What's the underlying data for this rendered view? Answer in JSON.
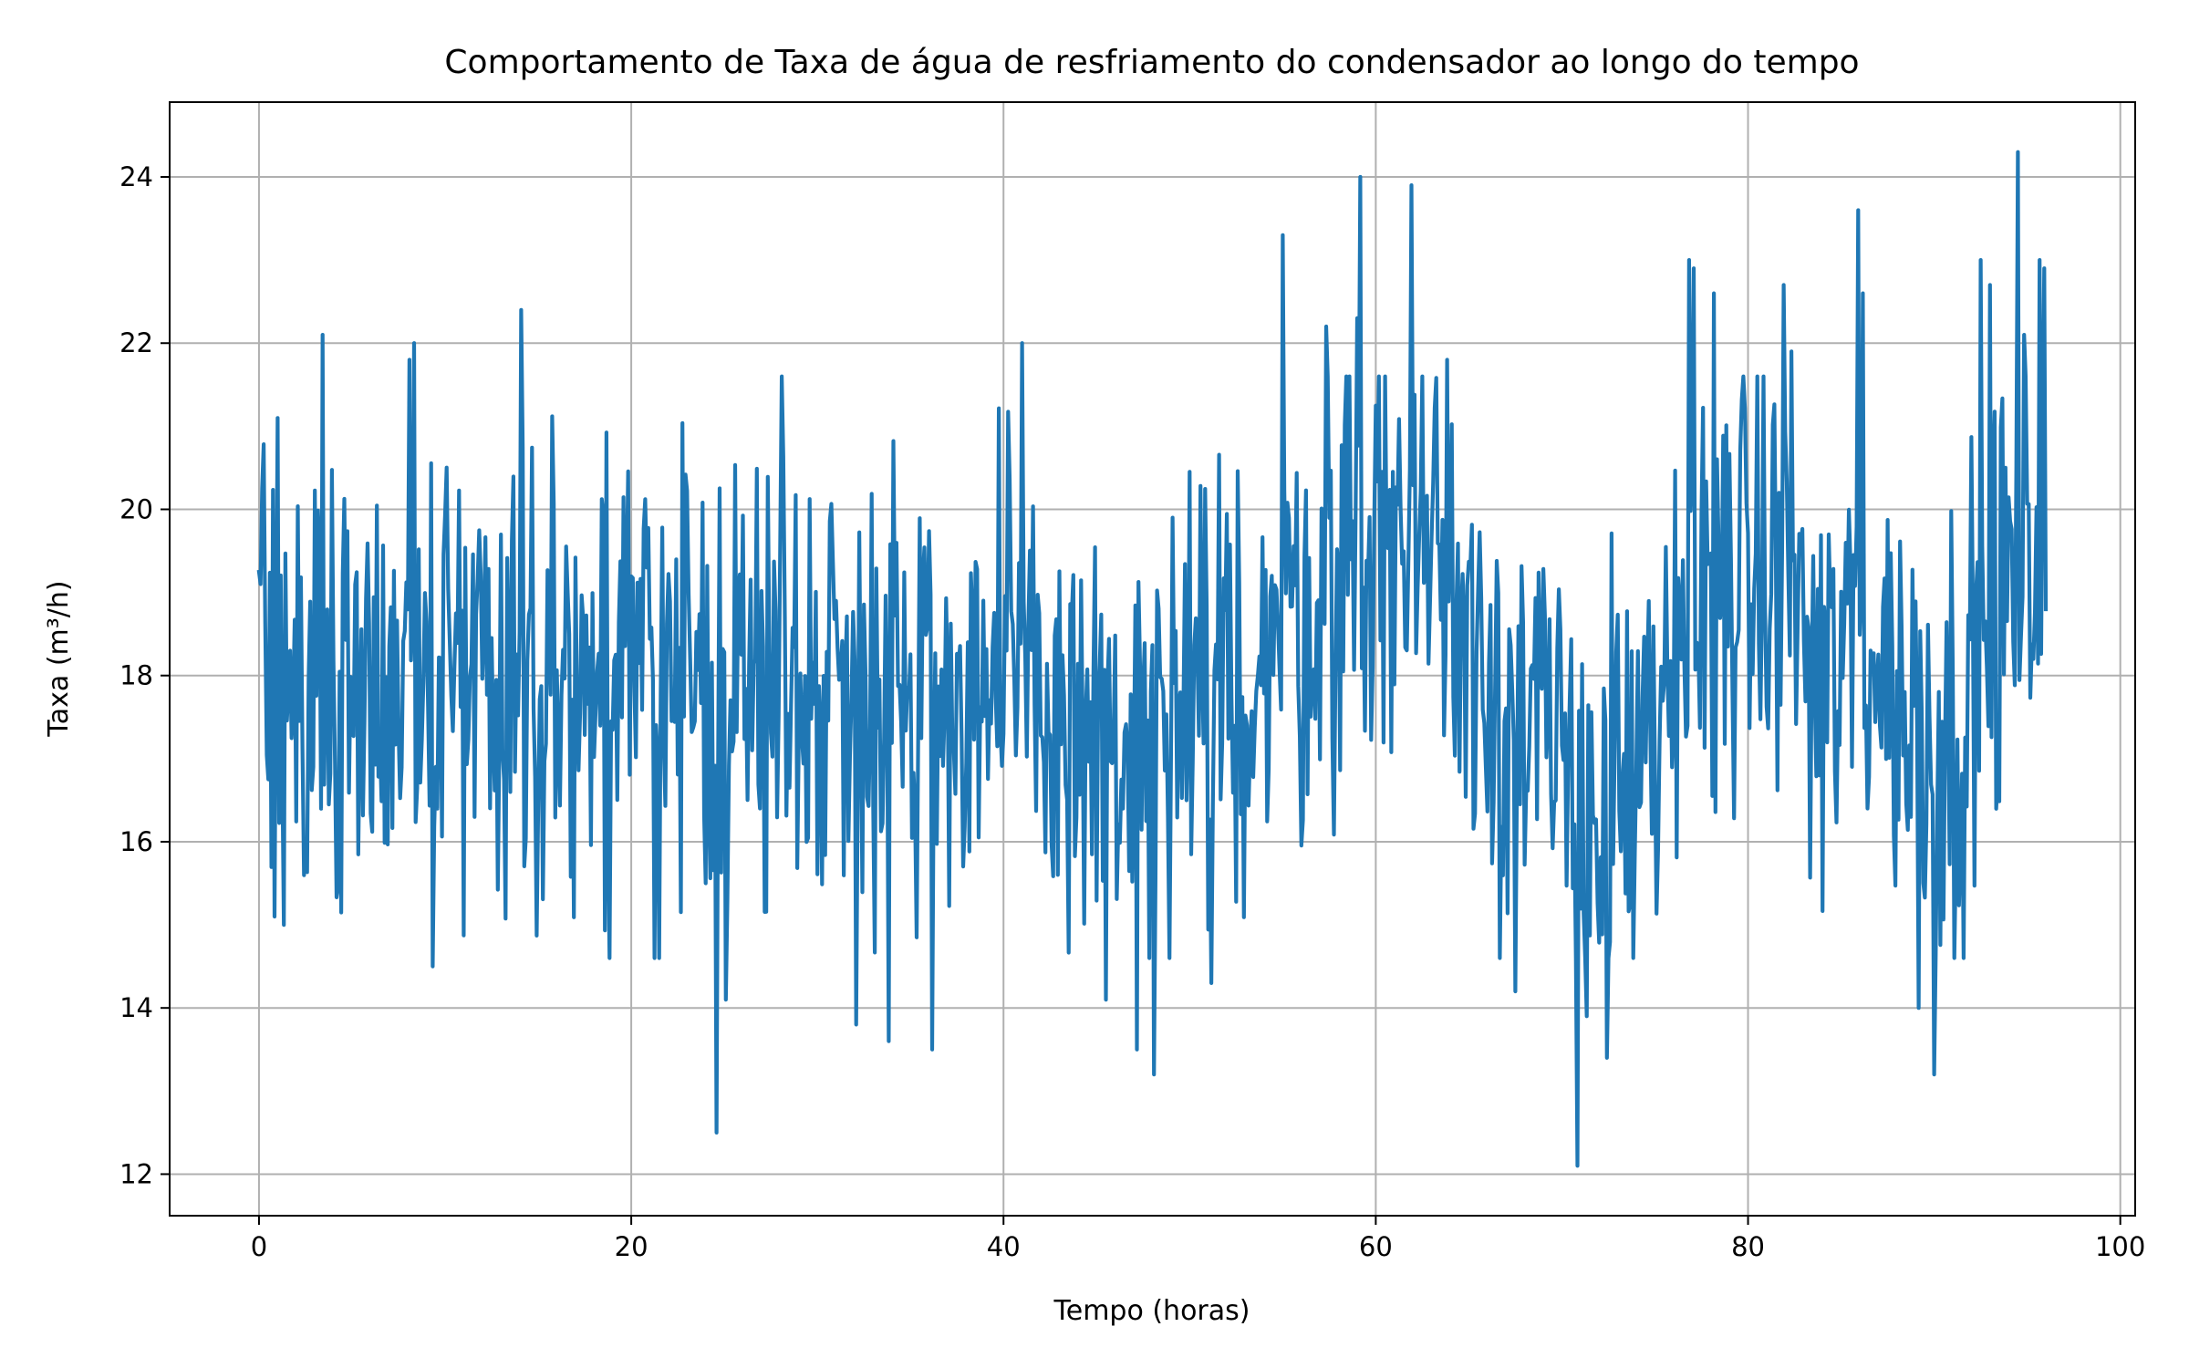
{
  "chart_data": {
    "type": "line",
    "title": "Comportamento de Taxa de água de resfriamento do condensador ao longo do tempo",
    "xlabel": "Tempo (horas)",
    "ylabel": "Taxa (m³/h)",
    "xlim": [
      -4.8,
      100.8
    ],
    "ylim": [
      11.5,
      24.9
    ],
    "grid": true,
    "legend": "none",
    "series_color": "#1f77b4",
    "x_ticks": [
      {
        "value": 0,
        "label": "0"
      },
      {
        "value": 20,
        "label": "20"
      },
      {
        "value": 40,
        "label": "40"
      },
      {
        "value": 60,
        "label": "60"
      },
      {
        "value": 80,
        "label": "80"
      },
      {
        "value": 100,
        "label": "100"
      }
    ],
    "y_ticks": [
      {
        "value": 12,
        "label": "12"
      },
      {
        "value": 14,
        "label": "14"
      },
      {
        "value": 16,
        "label": "16"
      },
      {
        "value": 18,
        "label": "18"
      },
      {
        "value": 20,
        "label": "20"
      },
      {
        "value": 22,
        "label": "22"
      },
      {
        "value": 24,
        "label": "24"
      }
    ],
    "sampling": {
      "x_start": 0,
      "x_end": 96,
      "points": 1153
    },
    "trend_knots": [
      [
        0,
        18.0
      ],
      [
        6,
        18.0
      ],
      [
        12,
        18.2
      ],
      [
        18,
        18.0
      ],
      [
        24,
        17.8
      ],
      [
        30,
        18.0
      ],
      [
        35,
        18.0
      ],
      [
        40,
        17.8
      ],
      [
        44,
        17.4
      ],
      [
        47,
        16.8
      ],
      [
        50,
        17.3
      ],
      [
        53,
        18.0
      ],
      [
        56,
        18.8
      ],
      [
        59,
        19.6
      ],
      [
        62,
        19.8
      ],
      [
        64,
        19.2
      ],
      [
        66,
        18.2
      ],
      [
        69,
        17.0
      ],
      [
        72,
        16.4
      ],
      [
        75,
        16.6
      ],
      [
        77,
        19.0
      ],
      [
        80,
        19.3
      ],
      [
        82,
        19.0
      ],
      [
        84,
        17.6
      ],
      [
        86,
        18.5
      ],
      [
        88,
        17.8
      ],
      [
        90,
        17.0
      ],
      [
        92,
        17.6
      ],
      [
        94,
        19.2
      ],
      [
        96,
        19.6
      ]
    ],
    "noise_amplitude": 1.35,
    "extremes": [
      [
        0.1,
        19.1
      ],
      [
        0.8,
        15.1
      ],
      [
        1.0,
        21.1
      ],
      [
        1.3,
        15.0
      ],
      [
        3.4,
        22.1
      ],
      [
        8.1,
        21.8
      ],
      [
        8.3,
        22.0
      ],
      [
        9.3,
        14.5
      ],
      [
        14.1,
        22.4
      ],
      [
        18.8,
        14.6
      ],
      [
        24.6,
        12.5
      ],
      [
        25.1,
        14.1
      ],
      [
        28.1,
        21.6
      ],
      [
        32.1,
        13.8
      ],
      [
        33.8,
        13.6
      ],
      [
        36.2,
        13.5
      ],
      [
        41.0,
        22.0
      ],
      [
        45.5,
        14.1
      ],
      [
        47.2,
        13.5
      ],
      [
        48.1,
        13.2
      ],
      [
        51.2,
        14.3
      ],
      [
        55.0,
        23.3
      ],
      [
        57.3,
        22.2
      ],
      [
        59.0,
        22.3
      ],
      [
        59.2,
        24.0
      ],
      [
        61.9,
        23.9
      ],
      [
        63.8,
        21.8
      ],
      [
        67.5,
        14.2
      ],
      [
        70.8,
        12.1
      ],
      [
        71.3,
        13.9
      ],
      [
        72.4,
        13.4
      ],
      [
        76.8,
        23.0
      ],
      [
        77.1,
        22.9
      ],
      [
        78.2,
        22.6
      ],
      [
        81.9,
        22.7
      ],
      [
        82.3,
        21.9
      ],
      [
        85.9,
        23.6
      ],
      [
        86.2,
        22.6
      ],
      [
        89.2,
        14.0
      ],
      [
        90.0,
        13.2
      ],
      [
        92.5,
        23.0
      ],
      [
        93.0,
        22.7
      ],
      [
        94.5,
        24.3
      ],
      [
        94.8,
        22.1
      ],
      [
        95.7,
        23.0
      ],
      [
        95.9,
        22.9
      ]
    ]
  }
}
